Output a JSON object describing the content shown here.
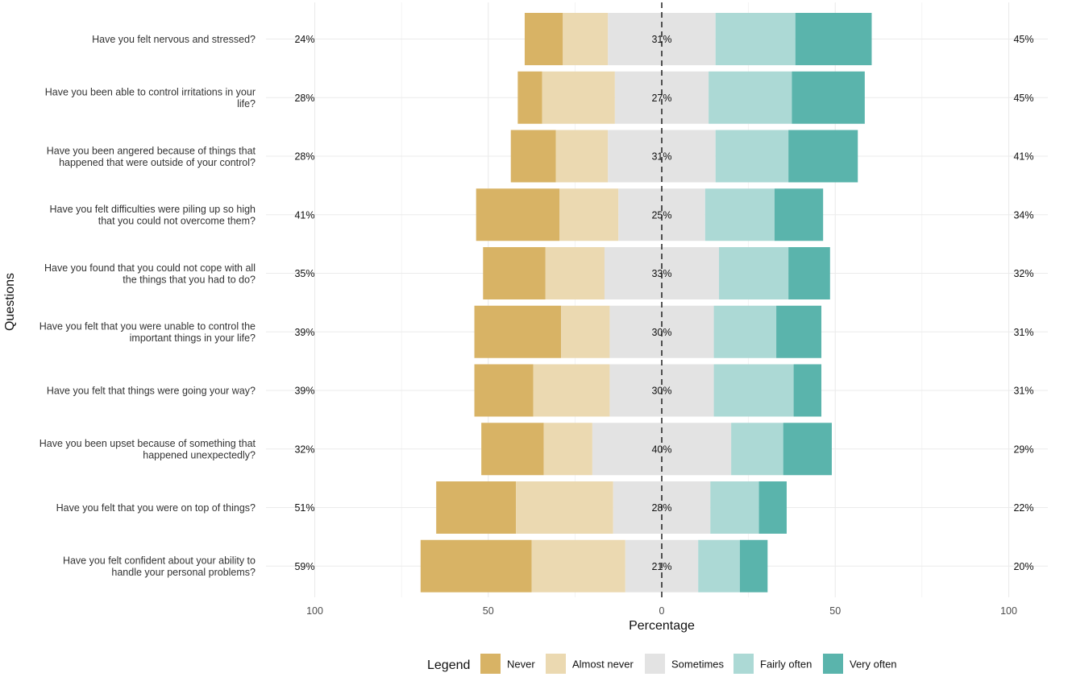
{
  "chart_data": {
    "type": "bar",
    "orientation": "horizontal",
    "stacking": "diverging",
    "xlabel": "Percentage",
    "ylabel": "Questions",
    "xlim": [
      -100,
      100
    ],
    "xticks": [
      -100,
      -50,
      0,
      50,
      100
    ],
    "xtick_labels": [
      "100",
      "50",
      "0",
      "50",
      "100"
    ],
    "grid": true,
    "legend_title": "Legend",
    "legend_position": "bottom",
    "categories": [
      {
        "name": "Never",
        "color": "#D8B365"
      },
      {
        "name": "Almost never",
        "color": "#EBD9B1"
      },
      {
        "name": "Sometimes",
        "color": "#E3E3E3"
      },
      {
        "name": "Fairly often",
        "color": "#ACD9D5"
      },
      {
        "name": "Very often",
        "color": "#5AB4AC"
      }
    ],
    "questions": [
      {
        "label": [
          "Have you felt nervous and stressed?"
        ],
        "values": [
          11,
          13,
          31,
          23,
          22
        ],
        "left_pct": "24%",
        "mid_pct": "31%",
        "right_pct": "45%"
      },
      {
        "label": [
          "Have you been able to control irritations in your",
          "life?"
        ],
        "values": [
          7,
          21,
          27,
          24,
          21
        ],
        "left_pct": "28%",
        "mid_pct": "27%",
        "right_pct": "45%"
      },
      {
        "label": [
          "Have you been angered because of things that",
          "happened that were outside of your control?"
        ],
        "values": [
          13,
          15,
          31,
          21,
          20
        ],
        "left_pct": "28%",
        "mid_pct": "31%",
        "right_pct": "41%"
      },
      {
        "label": [
          "Have you felt difficulties were piling up so high",
          "that you could not overcome them?"
        ],
        "values": [
          24,
          17,
          25,
          20,
          14
        ],
        "left_pct": "41%",
        "mid_pct": "25%",
        "right_pct": "34%"
      },
      {
        "label": [
          "Have you found that you could not cope with all",
          "the things that you had to do?"
        ],
        "values": [
          18,
          17,
          33,
          20,
          12
        ],
        "left_pct": "35%",
        "mid_pct": "33%",
        "right_pct": "32%"
      },
      {
        "label": [
          "Have you felt that you were unable to control the",
          "important things in your life?"
        ],
        "values": [
          25,
          14,
          30,
          18,
          13
        ],
        "left_pct": "39%",
        "mid_pct": "30%",
        "right_pct": "31%"
      },
      {
        "label": [
          "Have you felt that things were going your way?"
        ],
        "values": [
          17,
          22,
          30,
          23,
          8
        ],
        "left_pct": "39%",
        "mid_pct": "30%",
        "right_pct": "31%"
      },
      {
        "label": [
          "Have you been upset because of something that",
          "happened unexpectedly?"
        ],
        "values": [
          18,
          14,
          40,
          15,
          14
        ],
        "left_pct": "32%",
        "mid_pct": "40%",
        "right_pct": "29%"
      },
      {
        "label": [
          "Have you felt that you were on top of things?"
        ],
        "values": [
          23,
          28,
          28,
          14,
          8
        ],
        "left_pct": "51%",
        "mid_pct": "28%",
        "right_pct": "22%"
      },
      {
        "label": [
          "Have you felt confident about your ability to",
          "handle your personal problems?"
        ],
        "values": [
          32,
          27,
          21,
          12,
          8
        ],
        "left_pct": "59%",
        "mid_pct": "21%",
        "right_pct": "20%"
      }
    ]
  }
}
